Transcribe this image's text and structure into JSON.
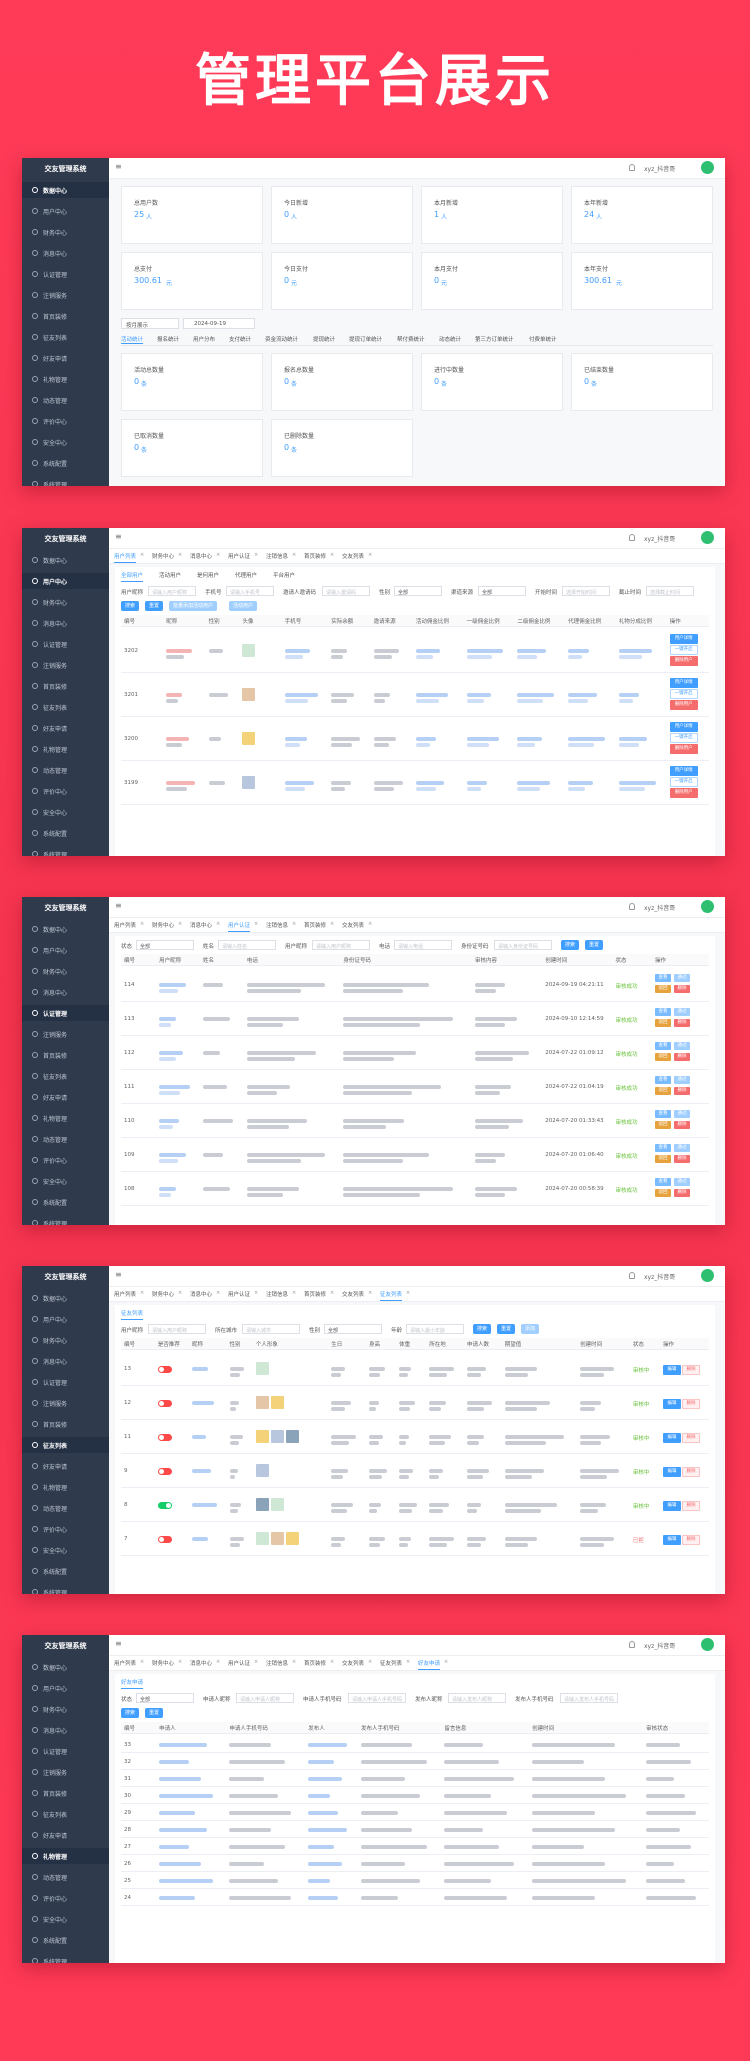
{
  "title": "管理平台展示",
  "app_name": "交友管理系统",
  "user": "xyz_抖音哥",
  "sidebar": [
    "数据中心",
    "用户中心",
    "财务中心",
    "消息中心",
    "认证管理",
    "注销服务",
    "首页装修",
    "征友列表",
    "好友申请",
    "礼物管理",
    "动态管理",
    "评价中心",
    "安全中心",
    "系统配置",
    "系统管理"
  ],
  "screens": [
    {
      "kind": "dashboard",
      "active_menu": 0,
      "stats": [
        {
          "label": "总用户数",
          "value": 25,
          "unit": "人"
        },
        {
          "label": "今日新增",
          "value": 0,
          "unit": "人"
        },
        {
          "label": "本月新增",
          "value": 1,
          "unit": "人"
        },
        {
          "label": "本年新增",
          "value": 24,
          "unit": "人"
        },
        {
          "label": "总支付",
          "value": 300.61,
          "unit": "元"
        },
        {
          "label": "今日支付",
          "value": 0,
          "unit": "元"
        },
        {
          "label": "本月支付",
          "value": 0,
          "unit": "元"
        },
        {
          "label": "本年支付",
          "value": 300.61,
          "unit": "元"
        }
      ],
      "period_select": "按月展示",
      "date": "2024-09-19",
      "stat_tabs": [
        "活动统计",
        "报名统计",
        "用户分布",
        "支付统计",
        "资金流动统计",
        "提现统计",
        "提现订单统计",
        "帮付费统计",
        "动态统计",
        "第三方订单统计",
        "付费单统计"
      ],
      "cards": [
        {
          "label": "活动总数量",
          "value": 0,
          "unit": "条"
        },
        {
          "label": "报名总数量",
          "value": 0,
          "unit": "条"
        },
        {
          "label": "进行中数量",
          "value": 0,
          "unit": "条"
        },
        {
          "label": "已结束数量",
          "value": 0,
          "unit": "条"
        },
        {
          "label": "已取消数量",
          "value": 0,
          "unit": "条"
        },
        {
          "label": "已删除数量",
          "value": 0,
          "unit": "条"
        }
      ]
    },
    {
      "kind": "table",
      "active_menu": 1,
      "active_tab": 0,
      "tabs": [
        "用户列表",
        "财务中心",
        "消息中心",
        "用户认证",
        "注销信息",
        "首页装修",
        "交友列表"
      ],
      "subtabs": [
        "全部用户",
        "活动用户",
        "是何用户",
        "代理用户",
        "平台用户"
      ],
      "filters": [
        {
          "label": "用户昵称",
          "placeholder": "请输入用户昵称"
        },
        {
          "label": "手机号",
          "placeholder": "请输入手机号"
        },
        {
          "label": "邀请人邀请码",
          "placeholder": "请输入邀请码"
        },
        {
          "label": "性别",
          "value": "全部"
        },
        {
          "label": "渠道来源",
          "value": "全部"
        },
        {
          "label": "开始时间",
          "placeholder": "选择开始时间"
        },
        {
          "label": "截止时间",
          "placeholder": "选择截止时间"
        }
      ],
      "buttons": [
        "搜索",
        "重置",
        "批量添加活动用户",
        "活动用户"
      ],
      "columns": [
        "编号",
        "昵称",
        "性别",
        "头像",
        "手机号",
        "实际余额",
        "邀请来源",
        "活动佣金比例",
        "一级佣金比例",
        "二级佣金比例",
        "代理佣金比例",
        "礼物分成比例",
        "操作"
      ],
      "row_actions": [
        "用户详情",
        "一键开启",
        "删除用户"
      ],
      "rows": [
        {
          "id": 3202
        },
        {
          "id": 3201
        },
        {
          "id": 3200
        },
        {
          "id": 3199
        }
      ]
    },
    {
      "kind": "table",
      "active_menu": 4,
      "active_tab": 3,
      "tabs": [
        "用户列表",
        "财务中心",
        "消息中心",
        "用户认证",
        "注销信息",
        "首页装修",
        "交友列表"
      ],
      "filters": [
        {
          "label": "状态",
          "value": "全部"
        },
        {
          "label": "姓名",
          "placeholder": "请输入姓名"
        },
        {
          "label": "用户昵称",
          "placeholder": "请输入用户昵称"
        },
        {
          "label": "电话",
          "placeholder": "请输入电话"
        },
        {
          "label": "身份证号码",
          "placeholder": "请输入身份证号码"
        }
      ],
      "buttons": [
        "搜索",
        "重置"
      ],
      "columns": [
        "编号",
        "用户昵称",
        "姓名",
        "电话",
        "身份证号码",
        "审核内容",
        "创建时间",
        "状态",
        "操作"
      ],
      "row_actions": [
        "查看",
        "通过",
        "驳回",
        "删除"
      ],
      "rows": [
        {
          "id": 114,
          "date": "2024-09-19 04:21:11",
          "status": "审核成功",
          "status_color": "#67c23a"
        },
        {
          "id": 113,
          "date": "2024-09-10 12:14:59",
          "status": "审核成功",
          "status_color": "#67c23a"
        },
        {
          "id": 112,
          "date": "2024-07-22 01:09:12",
          "status": "审核成功",
          "status_color": "#67c23a"
        },
        {
          "id": 111,
          "date": "2024-07-22 01:04:19",
          "status": "审核成功",
          "status_color": "#67c23a"
        },
        {
          "id": 110,
          "date": "2024-07-20 01:33:43",
          "status": "审核成功",
          "status_color": "#67c23a"
        },
        {
          "id": 109,
          "date": "2024-07-20 01:06:40",
          "status": "审核成功",
          "status_color": "#67c23a"
        },
        {
          "id": 108,
          "date": "2024-07-20 00:58:39",
          "status": "审核成功",
          "status_color": "#67c23a"
        }
      ]
    },
    {
      "kind": "table",
      "active_menu": 7,
      "active_tab": 7,
      "tabs": [
        "用户列表",
        "财务中心",
        "消息中心",
        "用户认证",
        "注销信息",
        "首页装修",
        "交友列表",
        "征友列表"
      ],
      "subtabs": [
        "征友列表"
      ],
      "filters": [
        {
          "label": "用户昵称",
          "placeholder": "请输入用户昵称"
        },
        {
          "label": "所在城市",
          "placeholder": "请输入城市"
        },
        {
          "label": "性别",
          "value": "全部"
        },
        {
          "label": "年龄",
          "placeholder": "请输入最小年龄"
        }
      ],
      "buttons": [
        "搜索",
        "重置",
        "添加"
      ],
      "columns": [
        "编号",
        "是否推荐",
        "昵称",
        "性别",
        "个人形象",
        "生日",
        "身高",
        "体重",
        "所在地",
        "申请人数",
        "期望值",
        "创建时间",
        "状态",
        "操作"
      ],
      "row_actions": [
        "编辑",
        "删除"
      ],
      "rows": [
        {
          "id": 13,
          "recommended": false,
          "status": "审核中",
          "status_color": "#67c23a"
        },
        {
          "id": 12,
          "recommended": false,
          "status": "审核中",
          "status_color": "#67c23a"
        },
        {
          "id": 11,
          "recommended": false,
          "status": "审核中",
          "status_color": "#67c23a"
        },
        {
          "id": 9,
          "recommended": false,
          "status": "审核中",
          "status_color": "#67c23a"
        },
        {
          "id": 8,
          "recommended": true,
          "status": "审核中",
          "status_color": "#67c23a"
        },
        {
          "id": 7,
          "recommended": false,
          "status": "已拒",
          "status_color": "#f56c6c"
        }
      ]
    },
    {
      "kind": "table",
      "active_menu": 9,
      "active_tab": 8,
      "tabs": [
        "用户列表",
        "财务中心",
        "消息中心",
        "用户认证",
        "注销信息",
        "首页装修",
        "交友列表",
        "征友列表",
        "好友申请"
      ],
      "subtabs": [
        "好友申请"
      ],
      "filters": [
        {
          "label": "状态",
          "value": "全部"
        },
        {
          "label": "申请人昵称",
          "placeholder": "请输入申请人昵称"
        },
        {
          "label": "申请人手机号码",
          "placeholder": "请输入申请人手机号码"
        },
        {
          "label": "发布人昵称",
          "placeholder": "请输入发布人昵称"
        },
        {
          "label": "发布人手机号码",
          "placeholder": "请输入发布人手机号码"
        }
      ],
      "buttons": [
        "搜索",
        "重置"
      ],
      "columns": [
        "编号",
        "申请人",
        "申请人手机号码",
        "发布人",
        "发布人手机号码",
        "留言信息",
        "创建时间",
        "审核状态"
      ],
      "rows": [
        {
          "id": 33
        },
        {
          "id": 32
        },
        {
          "id": 31
        },
        {
          "id": 30
        },
        {
          "id": 29
        },
        {
          "id": 28
        },
        {
          "id": 27
        },
        {
          "id": 26
        },
        {
          "id": 25
        },
        {
          "id": 24
        }
      ]
    }
  ]
}
